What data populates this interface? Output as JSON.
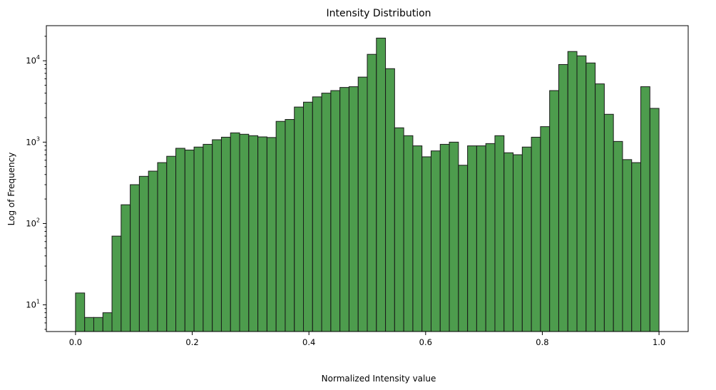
{
  "chart_data": {
    "type": "bar",
    "title": "Intensity Distribution",
    "xlabel": "Normalized Intensity value",
    "ylabel": "Log of Frequency",
    "y_scale": "log",
    "xlim": [
      -0.05,
      1.05
    ],
    "ylim": [
      4.7,
      27000
    ],
    "grid": false,
    "bar_color": "#2e8b2e",
    "edge_color": "#1a1a1a",
    "x_ticks": [
      0.0,
      0.2,
      0.4,
      0.6,
      0.8,
      1.0
    ],
    "x_tick_labels": [
      "0.0",
      "0.2",
      "0.4",
      "0.6",
      "0.8",
      "1.0"
    ],
    "y_ticks": [
      10,
      100,
      1000,
      10000
    ],
    "y_tick_labels": [
      {
        "base": "10",
        "exp": "1"
      },
      {
        "base": "10",
        "exp": "2"
      },
      {
        "base": "10",
        "exp": "3"
      },
      {
        "base": "10",
        "exp": "4"
      }
    ],
    "bin_start": 0.0,
    "bin_end": 1.0,
    "values": [
      14,
      7,
      7,
      8,
      70,
      170,
      300,
      380,
      440,
      560,
      670,
      840,
      800,
      870,
      940,
      1070,
      1150,
      1300,
      1250,
      1200,
      1160,
      1140,
      1800,
      1900,
      2700,
      3100,
      3600,
      4000,
      4300,
      4700,
      4800,
      6300,
      12000,
      19000,
      8000,
      1500,
      1200,
      900,
      660,
      780,
      940,
      1000,
      520,
      900,
      900,
      960,
      1200,
      740,
      700,
      870,
      1150,
      1550,
      4300,
      9000,
      13000,
      11500,
      9400,
      5200,
      2200,
      1020,
      610,
      560,
      4800,
      2600
    ]
  }
}
